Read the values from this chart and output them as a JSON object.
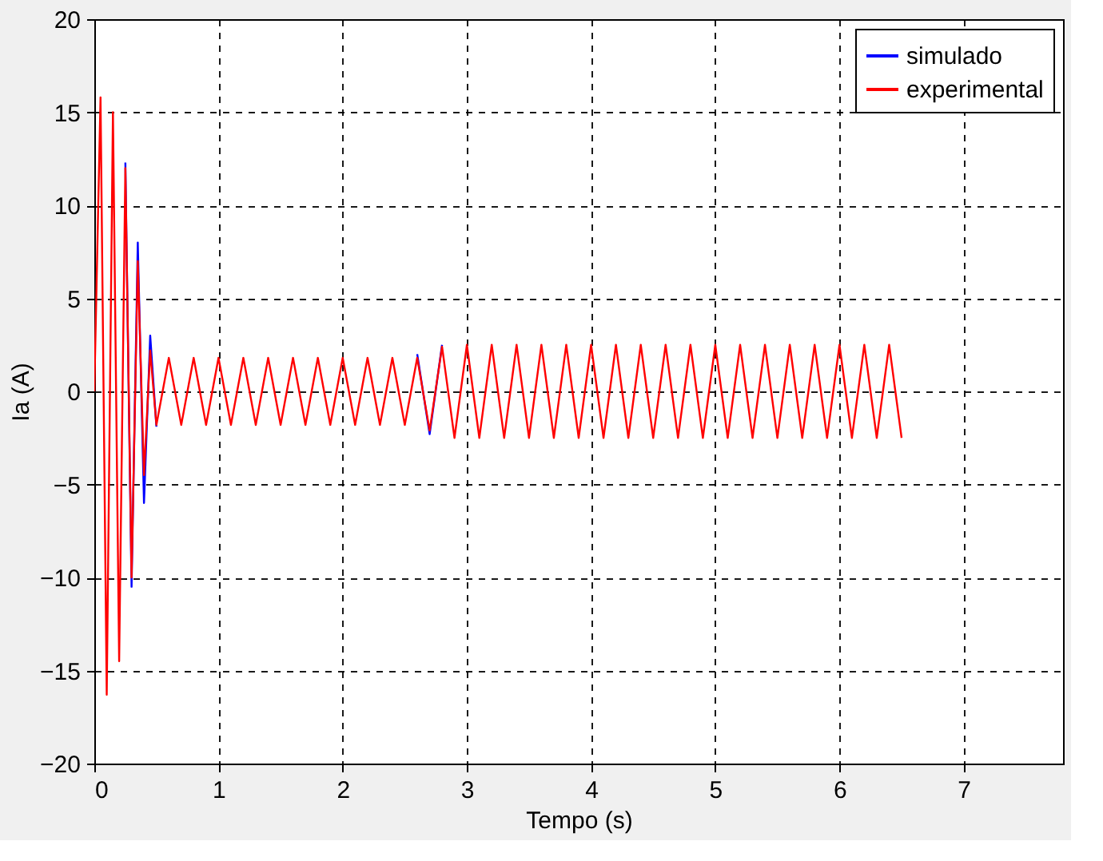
{
  "chart_data": {
    "type": "line",
    "xlabel": "Tempo (s)",
    "ylabel": "Ia (A)",
    "x": [
      0,
      0.05,
      0.1,
      0.15,
      0.2,
      0.25,
      0.3,
      0.35,
      0.4,
      0.45,
      0.5,
      0.6,
      0.7,
      0.8,
      0.9,
      1.0,
      1.1,
      1.2,
      1.3,
      1.4,
      1.5,
      1.6,
      1.7,
      1.8,
      1.9,
      2.0,
      2.1,
      2.2,
      2.3,
      2.4,
      2.5,
      2.6,
      2.7,
      2.8,
      2.9,
      3.0,
      3.1,
      3.2,
      3.3,
      3.4,
      3.5,
      3.6,
      3.7,
      3.8,
      3.9,
      4.0,
      4.1,
      4.2,
      4.3,
      4.4,
      4.5,
      4.6,
      4.7,
      4.8,
      4.9,
      5.0,
      5.1,
      5.2,
      5.3,
      5.4,
      5.5,
      5.6,
      5.7,
      5.8,
      5.9,
      6.0,
      6.1,
      6.2,
      6.3,
      6.4,
      6.5
    ],
    "series": [
      {
        "name": "simulado",
        "color": "#0000ff",
        "values": [
          null,
          null,
          null,
          null,
          null,
          12.3,
          -10.5,
          8,
          -6,
          3,
          -1.9,
          null,
          null,
          null,
          null,
          null,
          null,
          null,
          null,
          null,
          null,
          null,
          null,
          null,
          null,
          null,
          null,
          null,
          null,
          null,
          null,
          2.0,
          -2.3,
          2.5,
          null,
          null,
          null,
          null,
          null,
          null,
          null,
          null,
          null,
          null,
          null,
          null,
          null,
          null,
          null,
          null,
          null,
          null,
          null,
          null,
          null,
          null,
          null,
          null,
          null,
          null,
          null,
          null,
          null,
          null,
          null,
          null,
          null,
          null,
          null,
          null,
          null
        ]
      },
      {
        "name": "experimental",
        "color": "#ff0000",
        "values": [
          0,
          15.8,
          -16.3,
          15,
          -14.5,
          12,
          -10,
          7,
          -4.5,
          2.2,
          -1.8,
          1.8,
          -1.8,
          1.8,
          -1.8,
          1.8,
          -1.8,
          1.8,
          -1.8,
          1.8,
          -1.8,
          1.8,
          -1.8,
          1.8,
          -1.8,
          1.8,
          -1.8,
          1.8,
          -1.8,
          1.8,
          -1.8,
          1.8,
          -2.1,
          2.4,
          -2.5,
          2.5,
          -2.5,
          2.5,
          -2.5,
          2.5,
          -2.5,
          2.5,
          -2.5,
          2.5,
          -2.5,
          2.5,
          -2.5,
          2.5,
          -2.5,
          2.5,
          -2.5,
          2.5,
          -2.5,
          2.5,
          -2.5,
          2.5,
          -2.5,
          2.5,
          -2.5,
          2.5,
          -2.5,
          2.5,
          -2.5,
          2.5,
          -2.5,
          2.5,
          -2.5,
          2.5,
          -2.5,
          2.5,
          -2.5
        ]
      }
    ],
    "xlim": [
      0,
      7.8
    ],
    "xticks": [
      0,
      1,
      2,
      3,
      4,
      5,
      6,
      7
    ],
    "ylim": [
      -20,
      20
    ],
    "yticks": [
      -20,
      -15,
      -10,
      -5,
      0,
      5,
      10,
      15,
      20
    ],
    "grid": true,
    "legend": "top right",
    "marker": "none",
    "line_style": "solid"
  }
}
